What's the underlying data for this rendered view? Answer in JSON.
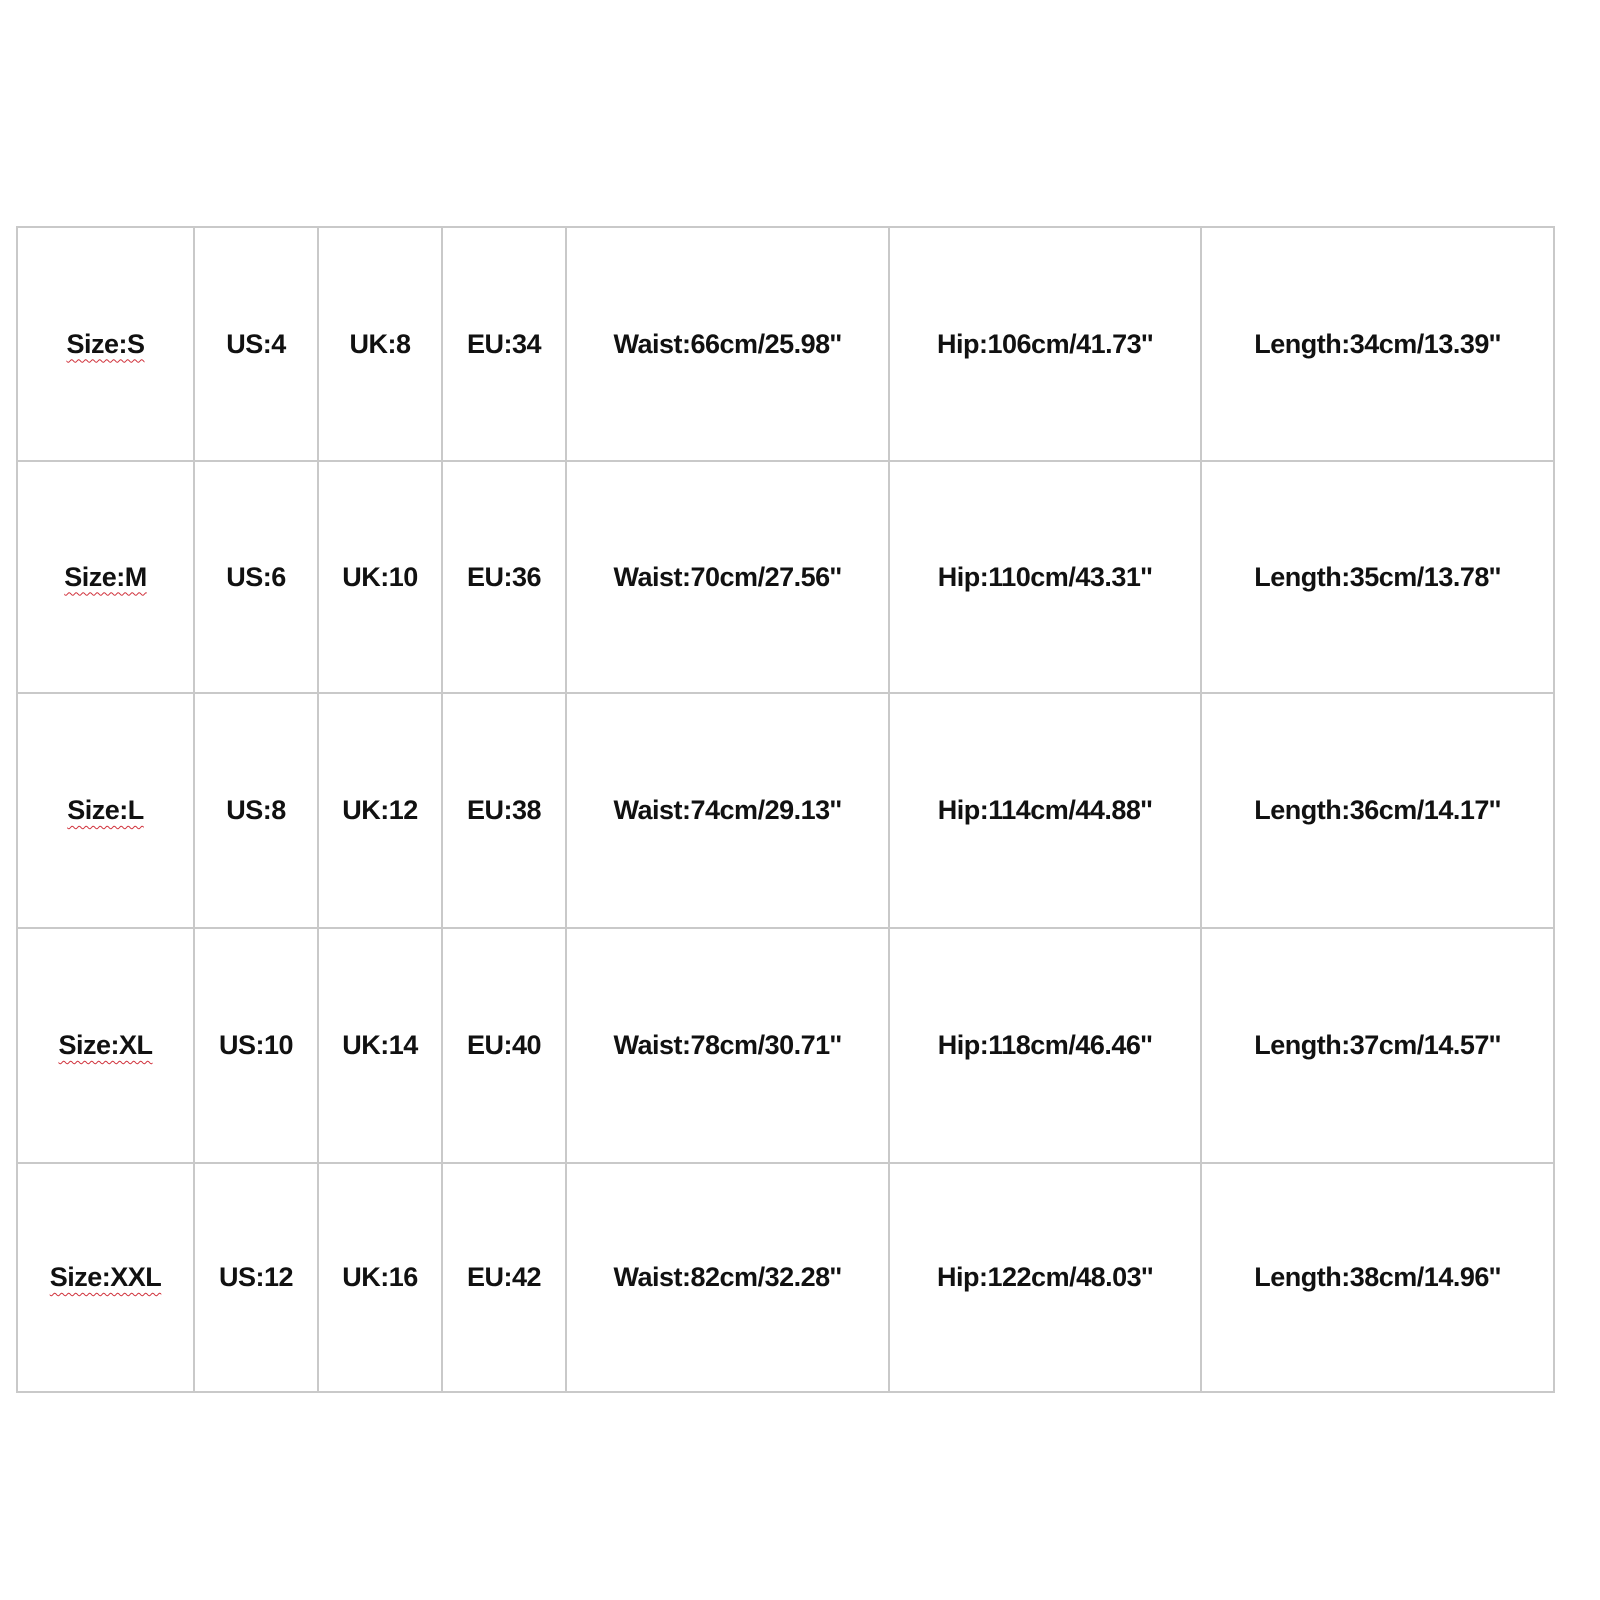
{
  "size_chart": {
    "rows": [
      {
        "size": "Size:S",
        "us": "US:4",
        "uk": "UK:8",
        "eu": "EU:34",
        "waist": "Waist:66cm/25.98''",
        "hip": "Hip:106cm/41.73''",
        "length": "Length:34cm/13.39''"
      },
      {
        "size": "Size:M",
        "us": "US:6",
        "uk": "UK:10",
        "eu": "EU:36",
        "waist": "Waist:70cm/27.56''",
        "hip": "Hip:110cm/43.31''",
        "length": "Length:35cm/13.78''"
      },
      {
        "size": "Size:L",
        "us": "US:8",
        "uk": "UK:12",
        "eu": "EU:38",
        "waist": "Waist:74cm/29.13''",
        "hip": "Hip:114cm/44.88''",
        "length": "Length:36cm/14.17''"
      },
      {
        "size": "Size:XL",
        "us": "US:10",
        "uk": "UK:14",
        "eu": "EU:40",
        "waist": "Waist:78cm/30.71''",
        "hip": "Hip:118cm/46.46''",
        "length": "Length:37cm/14.57''"
      },
      {
        "size": "Size:XXL",
        "us": "US:12",
        "uk": "UK:16",
        "eu": "EU:42",
        "waist": "Waist:82cm/32.28''",
        "hip": "Hip:122cm/48.03''",
        "length": "Length:38cm/14.96''"
      }
    ],
    "colors": {
      "border": "#c9c9c9",
      "text": "#111111",
      "spellcheck_underline": "#d0303a"
    }
  }
}
